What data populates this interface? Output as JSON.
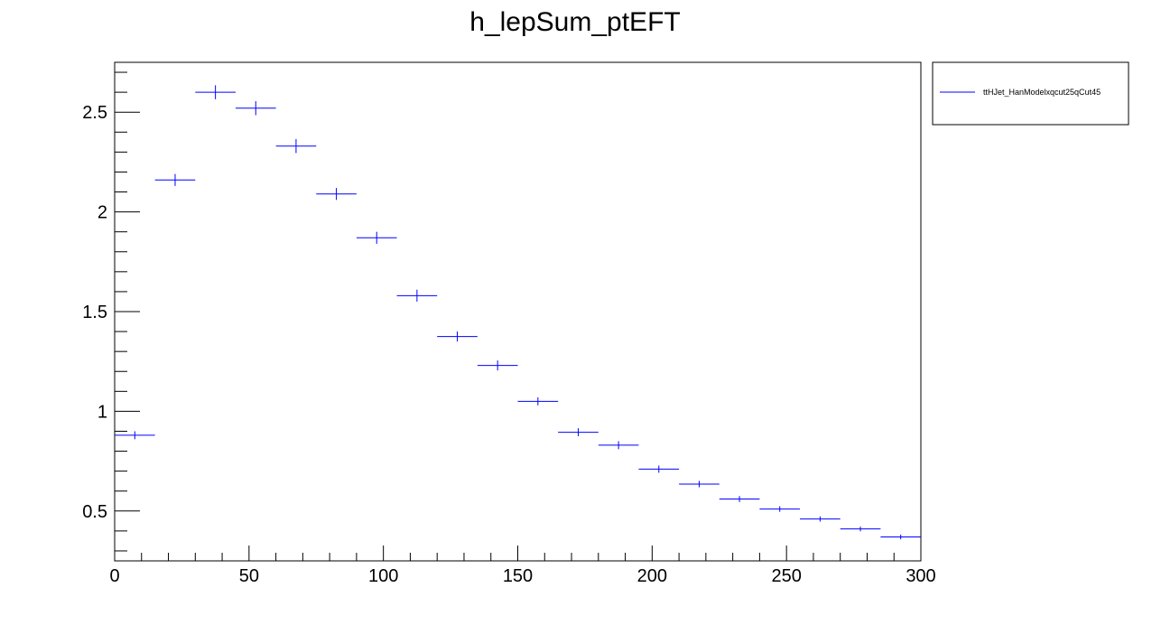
{
  "chart_data": {
    "type": "histogram",
    "title": "h_lepSum_ptEFT",
    "xlabel": "",
    "ylabel": "",
    "xlim": [
      0,
      300
    ],
    "ylim": [
      0.25,
      2.75
    ],
    "grid": false,
    "legend_position": "top-right-outside",
    "x_ticks": [
      0,
      50,
      100,
      150,
      200,
      250,
      300
    ],
    "y_ticks": [
      0.5,
      1,
      1.5,
      2,
      2.5
    ],
    "x_tick_labels": [
      "0",
      "50",
      "100",
      "150",
      "200",
      "250",
      "300"
    ],
    "y_tick_labels": [
      "0.5",
      "1",
      "1.5",
      "2",
      "2.5"
    ],
    "bin_width": 15,
    "series": [
      {
        "name": "ttHJet_HanModelxqcut25qCut45",
        "color": "#0000ff",
        "bins": [
          {
            "x": 7.5,
            "y": 0.88,
            "err": 0.02
          },
          {
            "x": 22.5,
            "y": 2.16,
            "err": 0.03
          },
          {
            "x": 37.5,
            "y": 2.6,
            "err": 0.035
          },
          {
            "x": 52.5,
            "y": 2.52,
            "err": 0.035
          },
          {
            "x": 67.5,
            "y": 2.33,
            "err": 0.035
          },
          {
            "x": 82.5,
            "y": 2.09,
            "err": 0.03
          },
          {
            "x": 97.5,
            "y": 1.87,
            "err": 0.03
          },
          {
            "x": 112.5,
            "y": 1.58,
            "err": 0.03
          },
          {
            "x": 127.5,
            "y": 1.375,
            "err": 0.025
          },
          {
            "x": 142.5,
            "y": 1.23,
            "err": 0.025
          },
          {
            "x": 157.5,
            "y": 1.05,
            "err": 0.02
          },
          {
            "x": 172.5,
            "y": 0.895,
            "err": 0.02
          },
          {
            "x": 187.5,
            "y": 0.83,
            "err": 0.02
          },
          {
            "x": 202.5,
            "y": 0.71,
            "err": 0.018
          },
          {
            "x": 217.5,
            "y": 0.635,
            "err": 0.016
          },
          {
            "x": 232.5,
            "y": 0.56,
            "err": 0.015
          },
          {
            "x": 247.5,
            "y": 0.51,
            "err": 0.014
          },
          {
            "x": 262.5,
            "y": 0.46,
            "err": 0.013
          },
          {
            "x": 277.5,
            "y": 0.41,
            "err": 0.012
          },
          {
            "x": 292.5,
            "y": 0.37,
            "err": 0.012
          }
        ]
      }
    ]
  }
}
